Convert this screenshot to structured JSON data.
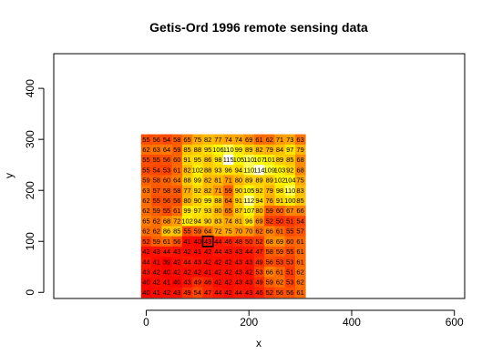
{
  "chart_data": {
    "type": "heatmap",
    "title": "Getis-Ord 1996 remote sensing data",
    "xlabel": "x",
    "ylabel": "y",
    "xlim": [
      -180,
      620
    ],
    "ylim": [
      -12,
      468
    ],
    "xticks": [
      0,
      200,
      400,
      600
    ],
    "yticks": [
      0,
      100,
      200,
      300,
      400
    ],
    "grid": false,
    "cell_size": 20,
    "x_start": 0,
    "y_start": 0,
    "color_scale": {
      "low": "#ff0000",
      "mid": "#ffa500",
      "high": "#ffff00",
      "top": "#ffffff"
    },
    "highlight": {
      "row": 10,
      "col": 6
    },
    "rows": [
      [
        55,
        56,
        54,
        58,
        65,
        75,
        82,
        77,
        74,
        74,
        69,
        61,
        62,
        71,
        73,
        63
      ],
      [
        62,
        63,
        64,
        59,
        85,
        88,
        95,
        106,
        110,
        99,
        89,
        82,
        79,
        84,
        97,
        79
      ],
      [
        55,
        55,
        56,
        60,
        91,
        95,
        86,
        98,
        115,
        105,
        110,
        107,
        101,
        89,
        85,
        68
      ],
      [
        55,
        54,
        53,
        61,
        82,
        102,
        88,
        93,
        96,
        94,
        110,
        114,
        109,
        103,
        92,
        68
      ],
      [
        59,
        58,
        60,
        64,
        88,
        99,
        82,
        81,
        71,
        80,
        89,
        89,
        89,
        102,
        104,
        75
      ],
      [
        63,
        57,
        58,
        58,
        77,
        92,
        82,
        71,
        59,
        90,
        105,
        92,
        79,
        98,
        110,
        83
      ],
      [
        62,
        55,
        56,
        56,
        80,
        90,
        99,
        88,
        64,
        91,
        112,
        94,
        76,
        91,
        100,
        85
      ],
      [
        62,
        59,
        55,
        61,
        99,
        97,
        93,
        80,
        65,
        87,
        107,
        80,
        59,
        60,
        67,
        66
      ],
      [
        65,
        62,
        68,
        72,
        102,
        94,
        90,
        83,
        74,
        81,
        96,
        69,
        52,
        50,
        51,
        54
      ],
      [
        62,
        62,
        86,
        85,
        55,
        59,
        64,
        72,
        75,
        70,
        70,
        62,
        66,
        61,
        55,
        57
      ],
      [
        52,
        59,
        61,
        56,
        41,
        40,
        43,
        44,
        46,
        48,
        50,
        52,
        68,
        69,
        60,
        61
      ],
      [
        42,
        43,
        44,
        43,
        42,
        41,
        42,
        44,
        43,
        43,
        44,
        47,
        58,
        59,
        55,
        61
      ],
      [
        44,
        41,
        39,
        42,
        44,
        43,
        42,
        42,
        42,
        43,
        43,
        49,
        56,
        53,
        53,
        61
      ],
      [
        43,
        42,
        40,
        42,
        42,
        42,
        41,
        42,
        42,
        43,
        42,
        53,
        66,
        61,
        51,
        62
      ],
      [
        40,
        42,
        41,
        40,
        43,
        49,
        46,
        42,
        42,
        43,
        43,
        49,
        59,
        62,
        53,
        62
      ],
      [
        40,
        41,
        42,
        43,
        49,
        54,
        47,
        44,
        42,
        44,
        43,
        46,
        52,
        56,
        56,
        61
      ]
    ]
  }
}
